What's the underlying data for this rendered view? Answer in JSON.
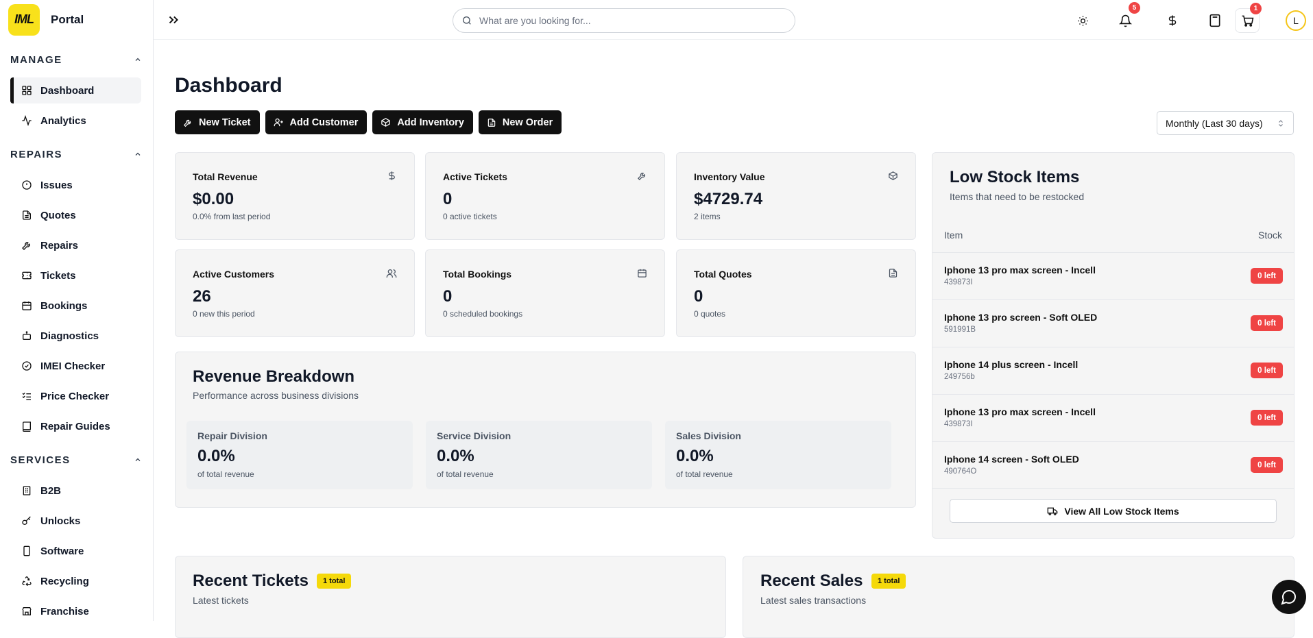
{
  "brand": {
    "name": "Portal",
    "logo_text": "IML"
  },
  "sidebar": {
    "sections": [
      {
        "title": "MANAGE",
        "items": [
          {
            "label": "Dashboard",
            "icon": "grid-icon",
            "active": true
          },
          {
            "label": "Analytics",
            "icon": "activity-icon"
          }
        ]
      },
      {
        "title": "REPAIRS",
        "items": [
          {
            "label": "Issues",
            "icon": "alert-circle-icon"
          },
          {
            "label": "Quotes",
            "icon": "file-text-icon"
          },
          {
            "label": "Repairs",
            "icon": "wrench-icon"
          },
          {
            "label": "Tickets",
            "icon": "ticket-icon"
          },
          {
            "label": "Bookings",
            "icon": "calendar-icon"
          },
          {
            "label": "Diagnostics",
            "icon": "bot-icon"
          },
          {
            "label": "IMEI Checker",
            "icon": "check-circle-icon"
          },
          {
            "label": "Price Checker",
            "icon": "list-checks-icon"
          },
          {
            "label": "Repair Guides",
            "icon": "book-icon"
          }
        ]
      },
      {
        "title": "SERVICES",
        "items": [
          {
            "label": "B2B",
            "icon": "building-icon"
          },
          {
            "label": "Unlocks",
            "icon": "key-icon"
          },
          {
            "label": "Software",
            "icon": "smartphone-icon"
          },
          {
            "label": "Recycling",
            "icon": "recycle-icon"
          },
          {
            "label": "Franchise",
            "icon": "store-icon"
          }
        ]
      }
    ]
  },
  "topbar": {
    "search_placeholder": "What are you looking for...",
    "notifications_count": "5",
    "cart_count": "1",
    "avatar_initial": "L"
  },
  "page": {
    "title": "Dashboard",
    "actions": [
      "New Ticket",
      "Add Customer",
      "Add Inventory",
      "New Order"
    ],
    "period": "Monthly (Last 30 days)"
  },
  "stats": [
    {
      "label": "Total Revenue",
      "value": "$0.00",
      "sub": "0.0% from last period",
      "icon": "dollar-icon"
    },
    {
      "label": "Active Tickets",
      "value": "0",
      "sub": "0 active tickets",
      "icon": "wrench-icon"
    },
    {
      "label": "Inventory Value",
      "value": "$4729.74",
      "sub": "2 items",
      "icon": "package-icon"
    },
    {
      "label": "Active Customers",
      "value": "26",
      "sub": "0 new this period",
      "icon": "users-icon"
    },
    {
      "label": "Total Bookings",
      "value": "0",
      "sub": "0 scheduled bookings",
      "icon": "calendar-icon"
    },
    {
      "label": "Total Quotes",
      "value": "0",
      "sub": "0 quotes",
      "icon": "file-text-icon"
    }
  ],
  "revenue_breakdown": {
    "title": "Revenue Breakdown",
    "subtitle": "Performance across business divisions",
    "divisions": [
      {
        "name": "Repair Division",
        "value": "0.0%",
        "sub": "of total revenue"
      },
      {
        "name": "Service Division",
        "value": "0.0%",
        "sub": "of total revenue"
      },
      {
        "name": "Sales Division",
        "value": "0.0%",
        "sub": "of total revenue"
      }
    ]
  },
  "low_stock": {
    "title": "Low Stock Items",
    "subtitle": "Items that need to be restocked",
    "col_item": "Item",
    "col_stock": "Stock",
    "items": [
      {
        "name": "Iphone 13 pro max screen - Incell",
        "sku": "439873I",
        "stock": "0 left"
      },
      {
        "name": "Iphone 13 pro screen - Soft OLED",
        "sku": "591991B",
        "stock": "0 left"
      },
      {
        "name": "Iphone 14 plus screen - Incell",
        "sku": "249756b",
        "stock": "0 left"
      },
      {
        "name": "Iphone 13 pro max screen - Incell",
        "sku": "439873I",
        "stock": "0 left"
      },
      {
        "name": "Iphone 14 screen - Soft OLED",
        "sku": "490764O",
        "stock": "0 left"
      }
    ],
    "view_all": "View All Low Stock Items"
  },
  "recent_tickets": {
    "title": "Recent Tickets",
    "badge": "1 total",
    "subtitle": "Latest tickets"
  },
  "recent_sales": {
    "title": "Recent Sales",
    "badge": "1 total",
    "subtitle": "Latest sales transactions"
  }
}
